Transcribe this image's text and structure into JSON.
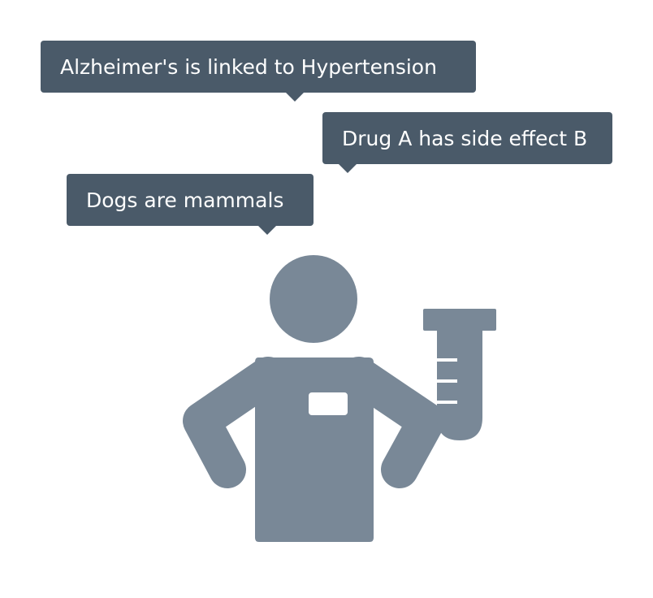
{
  "bubbles": [
    {
      "text": "Alzheimer's is linked to Hypertension"
    },
    {
      "text": "Drug A has side effect B"
    },
    {
      "text": "Dogs are mammals"
    }
  ],
  "icon": "scientist-with-test-tube-icon",
  "colors": {
    "bubble": "#4a5a69",
    "figure": "#798897",
    "text": "#ffffff"
  }
}
